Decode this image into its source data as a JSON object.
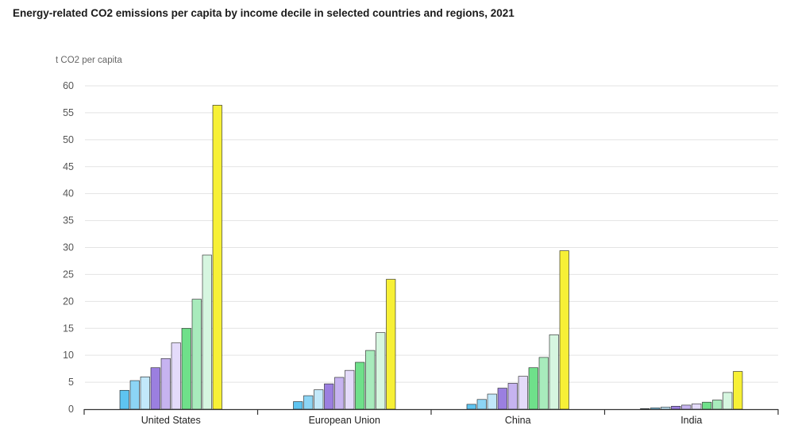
{
  "chart_data": {
    "type": "bar",
    "title": "Energy-related CO2 emissions per capita by income decile in selected countries and regions, 2021",
    "ylabel": "t CO2 per capita",
    "ylim": [
      0,
      60
    ],
    "yticks": [
      "0",
      "5",
      "10",
      "15",
      "20",
      "25",
      "30",
      "35",
      "40",
      "45",
      "50",
      "55",
      "60"
    ],
    "grid": true,
    "categories": [
      "United States",
      "European Union",
      "China",
      "India"
    ],
    "series": [
      {
        "values": [
          3.5,
          1.4,
          0.9,
          0.1
        ],
        "color": "#5ec4f0"
      },
      {
        "values": [
          5.3,
          2.5,
          1.8,
          0.25
        ],
        "color": "#8cd5f5"
      },
      {
        "values": [
          6.0,
          3.6,
          2.8,
          0.4
        ],
        "color": "#c2e8fa"
      },
      {
        "values": [
          7.7,
          4.7,
          3.9,
          0.55
        ],
        "color": "#9b7fe0"
      },
      {
        "values": [
          9.4,
          5.9,
          4.8,
          0.75
        ],
        "color": "#c6b3f0"
      },
      {
        "values": [
          12.3,
          7.2,
          6.1,
          1.0
        ],
        "color": "#e4dbfa"
      },
      {
        "values": [
          15.0,
          8.7,
          7.7,
          1.3
        ],
        "color": "#6fe08a"
      },
      {
        "values": [
          20.4,
          10.9,
          9.6,
          1.7
        ],
        "color": "#a8ebbc"
      },
      {
        "values": [
          28.6,
          14.2,
          13.8,
          3.1
        ],
        "color": "#d6f6e0"
      },
      {
        "values": [
          56.4,
          24.1,
          29.4,
          7.0
        ],
        "color": "#f7f036"
      }
    ]
  }
}
